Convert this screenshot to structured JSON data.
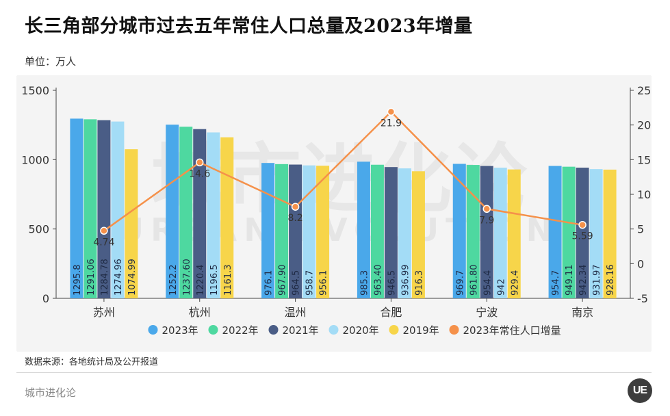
{
  "title": "长三角部分城市过去五年常住人口总量及2023年增量",
  "unit": "单位：万人",
  "source": "数据来源：各地统计局及公开报道",
  "footer_brand": "城市进化论",
  "watermark": {
    "cn": "城市进化论",
    "en": "URBAN EVOLUTION"
  },
  "colors": {
    "2023年": "#4aa8ea",
    "2022年": "#4ed8a0",
    "2021年": "#4a5d86",
    "2020年": "#a3dcf6",
    "2019年": "#f7d54a",
    "2023年常住人口增量": "#f5914a"
  },
  "chart_data": {
    "type": "bar",
    "categories": [
      "苏州",
      "杭州",
      "温州",
      "合肥",
      "宁波",
      "南京"
    ],
    "series": [
      {
        "name": "2023年",
        "values": [
          "1295.8",
          "1252.2",
          "976.1",
          "985.3",
          "969.7",
          "954.7"
        ]
      },
      {
        "name": "2022年",
        "values": [
          "1291.06",
          "1237.60",
          "967.90",
          "963.40",
          "961.80",
          "949.11"
        ]
      },
      {
        "name": "2021年",
        "values": [
          "1284.78",
          "1220.4",
          "964.5",
          "946.5",
          "954.4",
          "942.34"
        ]
      },
      {
        "name": "2020年",
        "values": [
          "1274.96",
          "1196.5",
          "958.7",
          "936.99",
          "942",
          "931.97"
        ]
      },
      {
        "name": "2019年",
        "values": [
          "1074.99",
          "1161.3",
          "956.1",
          "916.3",
          "929.4",
          "928.16"
        ]
      }
    ],
    "line_series": {
      "name": "2023年常住人口增量",
      "axis": "right",
      "values": [
        "4.74",
        "14.6",
        "8.2",
        "21.9",
        "7.9",
        "5.59"
      ]
    },
    "ylim_left": [
      0,
      1500
    ],
    "yticks_left": [
      0,
      500,
      1000,
      1500
    ],
    "ylim_right": [
      -5,
      25
    ],
    "yticks_right": [
      -5,
      0,
      5,
      10,
      15,
      20,
      25
    ],
    "grid": false,
    "legend_position": "bottom"
  }
}
